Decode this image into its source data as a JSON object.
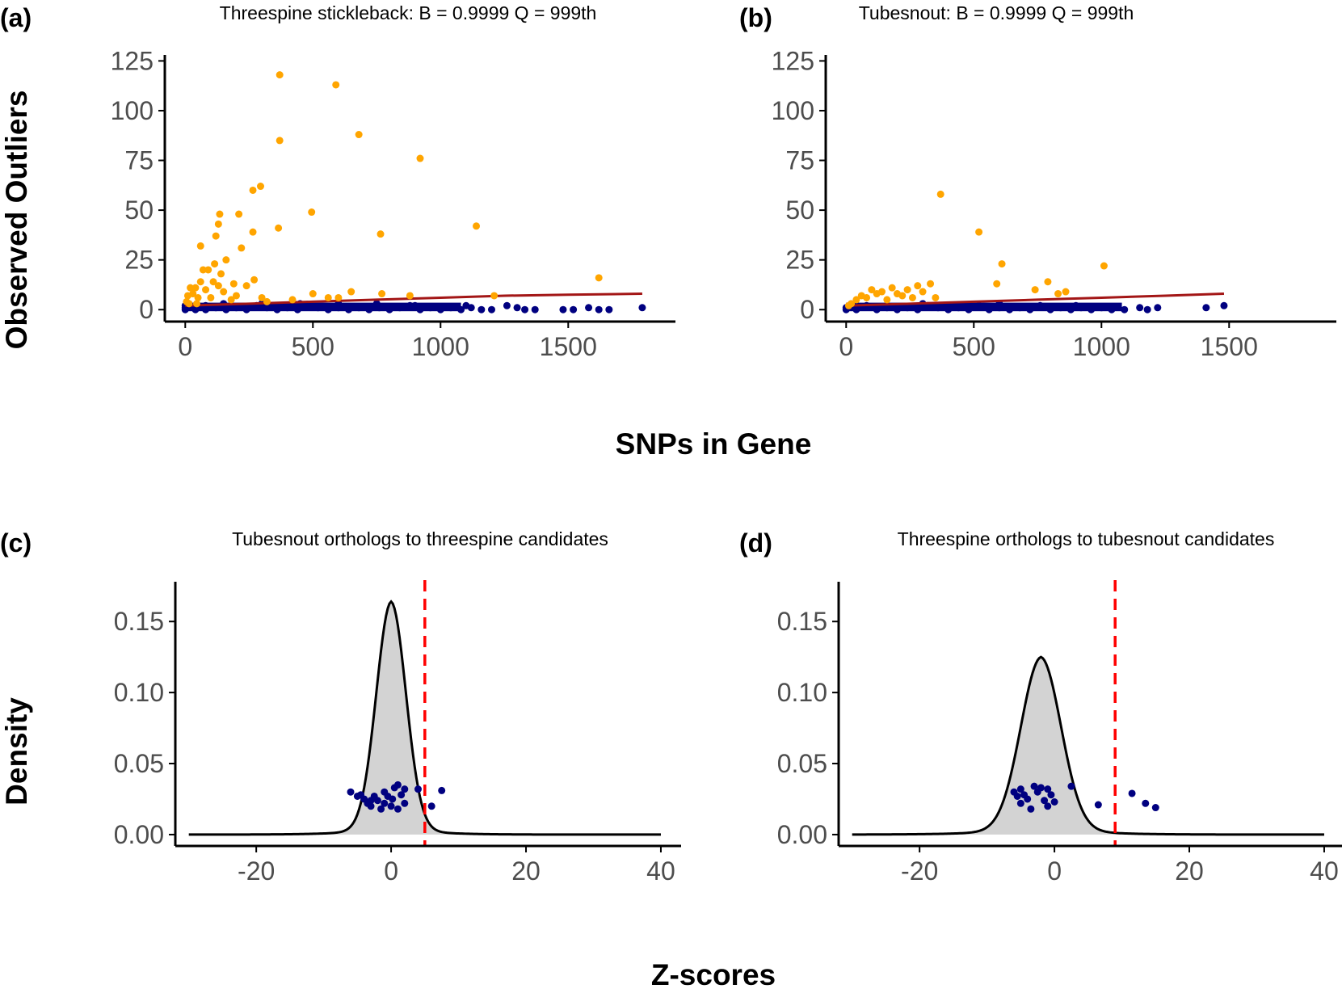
{
  "figure": {
    "shared_x_label_top": "SNPs in Gene",
    "shared_x_label_bottom": "Z-scores",
    "shared_y_label_top": "Observed Outliers",
    "shared_y_label_bottom": "Density"
  },
  "colors": {
    "outlier": "#ffa500",
    "background_gene": "#000080",
    "threshold_line": "#a31616",
    "density_fill": "#d3d3d3",
    "density_line": "#000000",
    "cutoff_line": "#ff0000",
    "axis": "#000000",
    "tick_text": "#4d4d4d"
  },
  "chart_data": [
    {
      "id": "a",
      "panel_label": "(a)",
      "type": "scatter",
      "title": "Threespine stickleback: B = 0.9999 Q = 999th",
      "xlabel": "SNPs in Gene",
      "ylabel": "Observed Outliers",
      "xlim": [
        -80,
        1920
      ],
      "ylim": [
        -6,
        128
      ],
      "xticks": [
        0,
        500,
        1000,
        1500
      ],
      "yticks": [
        0,
        25,
        50,
        75,
        100,
        125
      ],
      "grid": false,
      "outliers": [
        [
          370,
          118
        ],
        [
          590,
          113
        ],
        [
          680,
          88
        ],
        [
          920,
          76
        ],
        [
          370,
          85
        ],
        [
          295,
          62
        ],
        [
          265,
          60
        ],
        [
          495,
          49
        ],
        [
          135,
          48
        ],
        [
          210,
          48
        ],
        [
          130,
          43
        ],
        [
          365,
          41
        ],
        [
          1140,
          42
        ],
        [
          765,
          38
        ],
        [
          265,
          39
        ],
        [
          120,
          37
        ],
        [
          60,
          32
        ],
        [
          220,
          31
        ],
        [
          160,
          25
        ],
        [
          115,
          23
        ],
        [
          70,
          20
        ],
        [
          90,
          20
        ],
        [
          140,
          18
        ],
        [
          270,
          15
        ],
        [
          60,
          14
        ],
        [
          110,
          14
        ],
        [
          190,
          13
        ],
        [
          240,
          12
        ],
        [
          130,
          12
        ],
        [
          20,
          11
        ],
        [
          40,
          11
        ],
        [
          80,
          10
        ],
        [
          150,
          9
        ],
        [
          30,
          8
        ],
        [
          10,
          7
        ],
        [
          50,
          6
        ],
        [
          100,
          6
        ],
        [
          180,
          5
        ],
        [
          300,
          6
        ],
        [
          650,
          9
        ],
        [
          770,
          8
        ],
        [
          880,
          7
        ],
        [
          500,
          8
        ],
        [
          1210,
          7
        ],
        [
          1620,
          16
        ],
        [
          5,
          4
        ],
        [
          15,
          3
        ],
        [
          45,
          3
        ],
        [
          200,
          7
        ],
        [
          320,
          4
        ],
        [
          420,
          5
        ],
        [
          560,
          6
        ],
        [
          600,
          6
        ]
      ],
      "genes": [
        [
          0,
          0
        ],
        [
          0,
          1
        ],
        [
          0,
          2
        ],
        [
          40,
          0
        ],
        [
          40,
          1
        ],
        [
          80,
          0
        ],
        [
          80,
          2
        ],
        [
          120,
          1
        ],
        [
          160,
          0
        ],
        [
          200,
          1
        ],
        [
          240,
          0
        ],
        [
          280,
          2
        ],
        [
          320,
          1
        ],
        [
          360,
          0
        ],
        [
          400,
          1
        ],
        [
          440,
          0
        ],
        [
          480,
          2
        ],
        [
          520,
          1
        ],
        [
          560,
          0
        ],
        [
          600,
          1
        ],
        [
          640,
          0
        ],
        [
          680,
          1
        ],
        [
          720,
          0
        ],
        [
          760,
          1
        ],
        [
          800,
          0
        ],
        [
          840,
          1
        ],
        [
          880,
          2
        ],
        [
          920,
          0
        ],
        [
          960,
          1
        ],
        [
          1000,
          0
        ],
        [
          1040,
          1
        ],
        [
          1080,
          0
        ],
        [
          1120,
          1
        ],
        [
          1160,
          0
        ],
        [
          1200,
          0
        ],
        [
          1260,
          2
        ],
        [
          1300,
          1
        ],
        [
          1330,
          0
        ],
        [
          1370,
          0
        ],
        [
          1480,
          0
        ],
        [
          1520,
          0
        ],
        [
          1580,
          1
        ],
        [
          1620,
          0
        ],
        [
          1660,
          0
        ],
        [
          1790,
          1
        ],
        [
          150,
          3
        ],
        [
          300,
          3
        ],
        [
          450,
          3
        ],
        [
          600,
          3
        ],
        [
          750,
          3
        ],
        [
          900,
          2
        ],
        [
          1100,
          2
        ]
      ],
      "threshold": [
        [
          0,
          2
        ],
        [
          250,
          3
        ],
        [
          500,
          4
        ],
        [
          750,
          5
        ],
        [
          1000,
          6
        ],
        [
          1250,
          7
        ],
        [
          1500,
          7.5
        ],
        [
          1790,
          8
        ]
      ]
    },
    {
      "id": "b",
      "panel_label": "(b)",
      "type": "scatter",
      "title": "Tubesnout: B = 0.9999 Q = 999th",
      "xlabel": "SNPs in Gene",
      "ylabel": "Observed Outliers",
      "xlim": [
        -80,
        1920
      ],
      "ylim": [
        -6,
        128
      ],
      "xticks": [
        0,
        500,
        1000,
        1500
      ],
      "yticks": [
        0,
        25,
        50,
        75,
        100,
        125
      ],
      "grid": false,
      "outliers": [
        [
          370,
          58
        ],
        [
          520,
          39
        ],
        [
          610,
          23
        ],
        [
          1010,
          22
        ],
        [
          590,
          13
        ],
        [
          790,
          14
        ],
        [
          740,
          10
        ],
        [
          830,
          8
        ],
        [
          860,
          9
        ],
        [
          330,
          13
        ],
        [
          280,
          12
        ],
        [
          180,
          11
        ],
        [
          100,
          10
        ],
        [
          120,
          8
        ],
        [
          60,
          7
        ],
        [
          40,
          5
        ],
        [
          20,
          3
        ],
        [
          200,
          8
        ],
        [
          240,
          10
        ],
        [
          300,
          9
        ],
        [
          140,
          9
        ],
        [
          80,
          6
        ],
        [
          160,
          5
        ],
        [
          260,
          6
        ],
        [
          220,
          7
        ],
        [
          350,
          6
        ],
        [
          10,
          2
        ]
      ],
      "genes": [
        [
          0,
          0
        ],
        [
          0,
          1
        ],
        [
          40,
          0
        ],
        [
          80,
          2
        ],
        [
          120,
          0
        ],
        [
          160,
          1
        ],
        [
          200,
          0
        ],
        [
          240,
          1
        ],
        [
          280,
          0
        ],
        [
          320,
          2
        ],
        [
          360,
          1
        ],
        [
          400,
          0
        ],
        [
          440,
          1
        ],
        [
          480,
          0
        ],
        [
          520,
          2
        ],
        [
          560,
          0
        ],
        [
          600,
          1
        ],
        [
          640,
          0
        ],
        [
          680,
          1
        ],
        [
          720,
          0
        ],
        [
          760,
          2
        ],
        [
          800,
          0
        ],
        [
          840,
          1
        ],
        [
          880,
          0
        ],
        [
          920,
          1
        ],
        [
          960,
          0
        ],
        [
          1000,
          1
        ],
        [
          1040,
          0
        ],
        [
          1090,
          0
        ],
        [
          1150,
          1
        ],
        [
          1180,
          0
        ],
        [
          1220,
          1
        ],
        [
          1410,
          1
        ],
        [
          1480,
          2
        ],
        [
          300,
          3
        ],
        [
          600,
          3
        ],
        [
          900,
          2
        ]
      ],
      "threshold": [
        [
          0,
          2
        ],
        [
          250,
          3
        ],
        [
          500,
          4
        ],
        [
          750,
          5
        ],
        [
          1000,
          6
        ],
        [
          1250,
          7
        ],
        [
          1480,
          8
        ]
      ]
    },
    {
      "id": "c",
      "panel_label": "(c)",
      "type": "area",
      "title": "Tubesnout orthologs to threespine candidates",
      "xlabel": "Z-scores",
      "ylabel": "Density",
      "xlim": [
        -32,
        43
      ],
      "ylim": [
        -0.008,
        0.178
      ],
      "xticks": [
        -20,
        0,
        20,
        40
      ],
      "yticks": [
        0.0,
        0.05,
        0.1,
        0.15
      ],
      "ytick_labels": [
        "0.00",
        "0.05",
        "0.10",
        "0.15"
      ],
      "grid": false,
      "cutoff": 5,
      "density": {
        "center": 0,
        "peak": 0.164,
        "sd": 2.2,
        "tail_amp": 0.022,
        "tail_scale": 4.5,
        "x_min": -30,
        "x_max": 40
      },
      "points": [
        [
          -6,
          0.03
        ],
        [
          -5,
          0.027
        ],
        [
          -4,
          0.025
        ],
        [
          -3.5,
          0.022
        ],
        [
          -3,
          0.02
        ],
        [
          -2.5,
          0.027
        ],
        [
          -2,
          0.024
        ],
        [
          -1.5,
          0.018
        ],
        [
          -1,
          0.022
        ],
        [
          -0.5,
          0.027
        ],
        [
          0,
          0.02
        ],
        [
          0.5,
          0.033
        ],
        [
          1,
          0.035
        ],
        [
          1.5,
          0.028
        ],
        [
          2,
          0.022
        ],
        [
          -1,
          0.03
        ],
        [
          1,
          0.018
        ],
        [
          -3,
          0.024
        ],
        [
          2,
          0.032
        ],
        [
          4,
          0.032
        ],
        [
          6,
          0.02
        ],
        [
          7.5,
          0.031
        ],
        [
          -4.5,
          0.028
        ],
        [
          0.2,
          0.025
        ]
      ]
    },
    {
      "id": "d",
      "panel_label": "(d)",
      "type": "area",
      "title": "Threespine orthologs to tubesnout candidates",
      "xlabel": "Z-scores",
      "ylabel": "Density",
      "xlim": [
        -32,
        43
      ],
      "ylim": [
        -0.008,
        0.178
      ],
      "xticks": [
        -20,
        0,
        20,
        40
      ],
      "yticks": [
        0.0,
        0.05,
        0.1,
        0.15
      ],
      "ytick_labels": [
        "0.00",
        "0.05",
        "0.10",
        "0.15"
      ],
      "grid": false,
      "cutoff": 9,
      "density": {
        "center": -2,
        "peak": 0.125,
        "sd": 3.0,
        "tail_amp": 0.024,
        "tail_scale": 5.5,
        "x_min": -30,
        "x_max": 40
      },
      "points": [
        [
          -6,
          0.03
        ],
        [
          -5.5,
          0.027
        ],
        [
          -5,
          0.032
        ],
        [
          -4.5,
          0.028
        ],
        [
          -4,
          0.025
        ],
        [
          -3,
          0.034
        ],
        [
          -2.5,
          0.03
        ],
        [
          -2,
          0.033
        ],
        [
          -1.5,
          0.024
        ],
        [
          -1,
          0.02
        ],
        [
          -0.5,
          0.028
        ],
        [
          0,
          0.023
        ],
        [
          -3.5,
          0.018
        ],
        [
          -5,
          0.022
        ],
        [
          2.5,
          0.034
        ],
        [
          6.5,
          0.021
        ],
        [
          11.5,
          0.029
        ],
        [
          13.5,
          0.022
        ],
        [
          15,
          0.019
        ],
        [
          -1,
          0.032
        ]
      ]
    }
  ]
}
